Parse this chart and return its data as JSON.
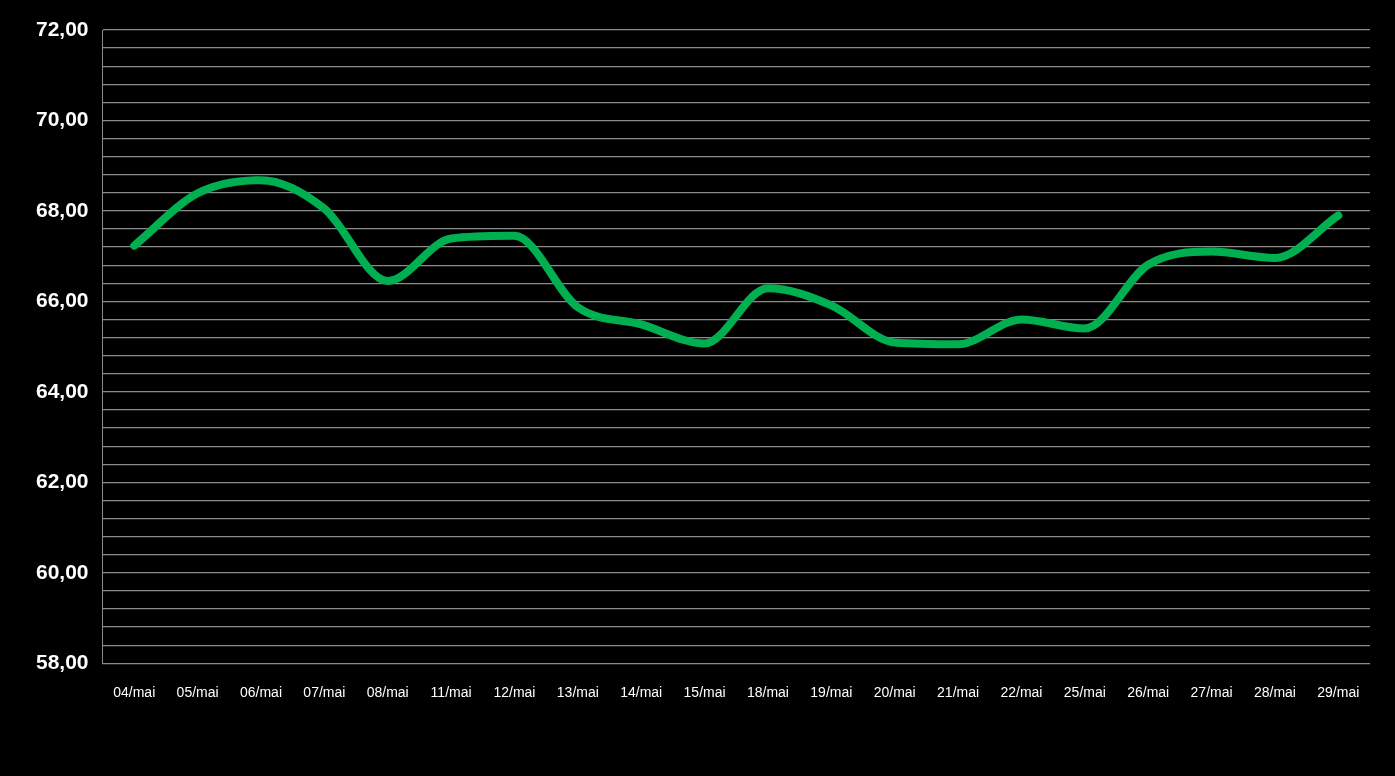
{
  "chart_data": {
    "type": "line",
    "categories": [
      "04/mai",
      "05/mai",
      "06/mai",
      "07/mai",
      "08/mai",
      "11/mai",
      "12/mai",
      "13/mai",
      "14/mai",
      "15/mai",
      "18/mai",
      "19/mai",
      "20/mai",
      "21/mai",
      "22/mai",
      "25/mai",
      "26/mai",
      "27/mai",
      "28/mai",
      "29/mai"
    ],
    "series": [
      {
        "color": "#00b050",
        "values": [
          67.23,
          68.39,
          68.68,
          68.05,
          66.45,
          67.39,
          67.45,
          65.87,
          65.49,
          65.07,
          66.29,
          65.91,
          65.09,
          65.05,
          65.6,
          65.4,
          66.81,
          67.1,
          66.96,
          67.9
        ]
      }
    ],
    "ylim": [
      58,
      72
    ],
    "yticks": [
      {
        "value": 58,
        "label": "58,00"
      },
      {
        "value": 58.4,
        "label": null
      },
      {
        "value": 58.8,
        "label": null
      },
      {
        "value": 59.2,
        "label": null
      },
      {
        "value": 59.6,
        "label": null
      },
      {
        "value": 60,
        "label": "60,00"
      },
      {
        "value": 60.4,
        "label": null
      },
      {
        "value": 60.8,
        "label": null
      },
      {
        "value": 61.2,
        "label": null
      },
      {
        "value": 61.6,
        "label": null
      },
      {
        "value": 62,
        "label": "62,00"
      },
      {
        "value": 62.4,
        "label": null
      },
      {
        "value": 62.8,
        "label": null
      },
      {
        "value": 63.2,
        "label": null
      },
      {
        "value": 63.6,
        "label": null
      },
      {
        "value": 64,
        "label": "64,00"
      },
      {
        "value": 64.4,
        "label": null
      },
      {
        "value": 64.8,
        "label": null
      },
      {
        "value": 65.2,
        "label": null
      },
      {
        "value": 65.6,
        "label": null
      },
      {
        "value": 66,
        "label": "66,00"
      },
      {
        "value": 66.4,
        "label": null
      },
      {
        "value": 66.8,
        "label": null
      },
      {
        "value": 67.2,
        "label": null
      },
      {
        "value": 67.6,
        "label": null
      },
      {
        "value": 68,
        "label": "68,00"
      },
      {
        "value": 68.4,
        "label": null
      },
      {
        "value": 68.8,
        "label": null
      },
      {
        "value": 69.2,
        "label": null
      },
      {
        "value": 69.6,
        "label": null
      },
      {
        "value": 70,
        "label": "70,00"
      },
      {
        "value": 70.4,
        "label": null
      },
      {
        "value": 70.8,
        "label": null
      },
      {
        "value": 71.2,
        "label": null
      },
      {
        "value": 71.6,
        "label": null
      },
      {
        "value": 72,
        "label": "72,00"
      }
    ],
    "grid": "y",
    "legend": false,
    "marker": "none",
    "line_style": "solid"
  }
}
